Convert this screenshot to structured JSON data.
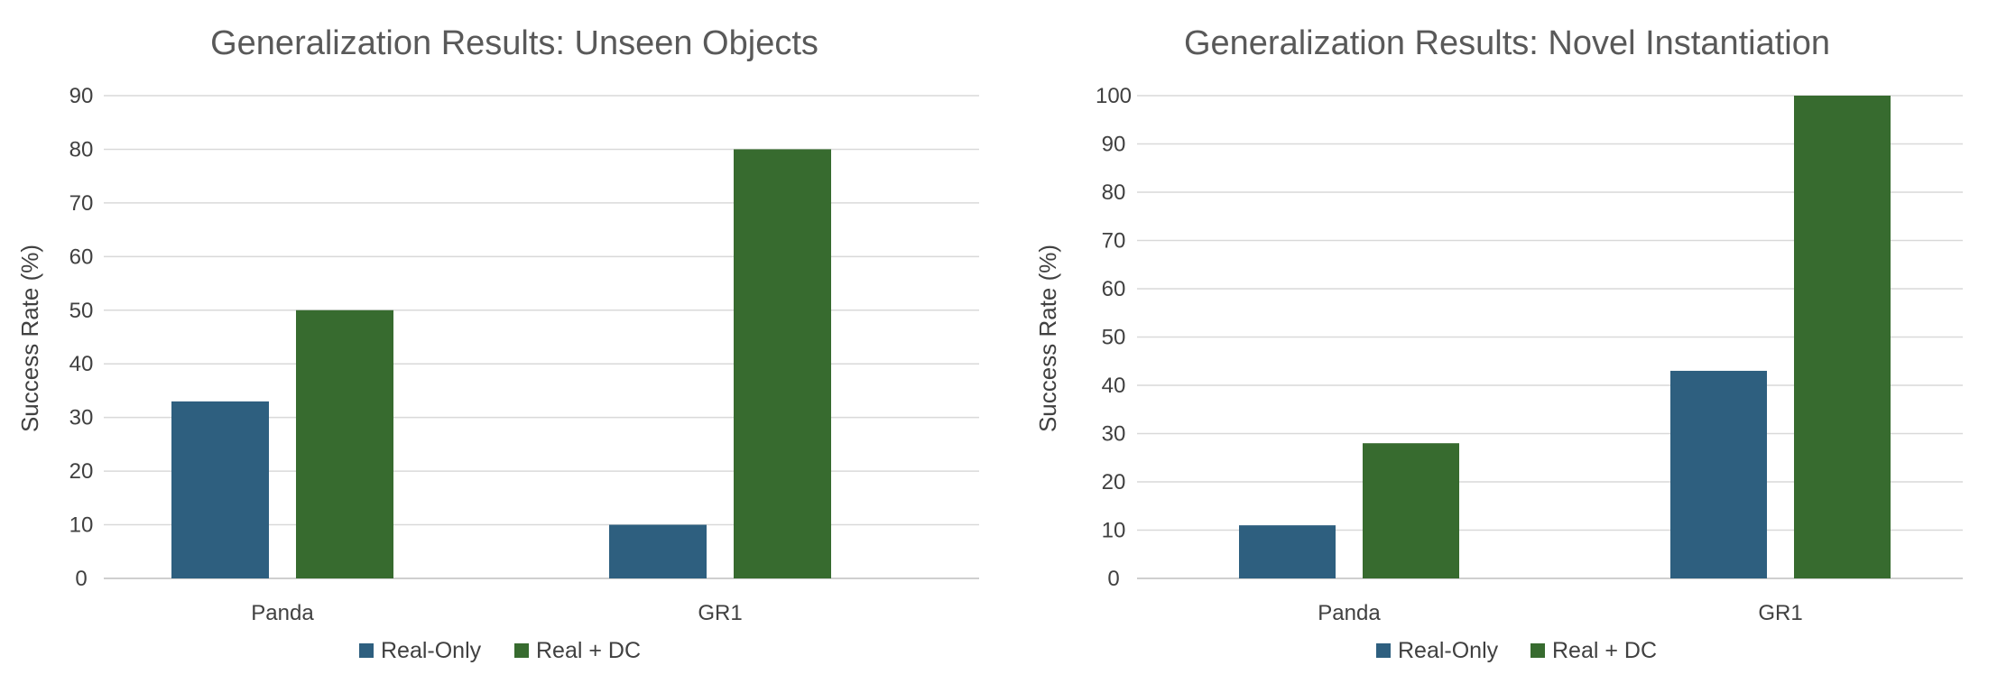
{
  "chart_data": [
    {
      "type": "bar",
      "title": "Generalization Results: Unseen Objects",
      "ylabel": "Success Rate (%)",
      "xlabel": "",
      "categories": [
        "Panda",
        "GR1"
      ],
      "series": [
        {
          "name": "Real-Only",
          "color": "#2e5f7f",
          "values": [
            33,
            10
          ]
        },
        {
          "name": "Real + DC",
          "color": "#376b2f",
          "values": [
            50,
            80
          ]
        }
      ],
      "ylim": [
        0,
        90
      ],
      "ytick_step": 10,
      "grid": true,
      "legend_position": "bottom"
    },
    {
      "type": "bar",
      "title": "Generalization Results: Novel Instantiation",
      "ylabel": "Success Rate (%)",
      "xlabel": "",
      "categories": [
        "Panda",
        "GR1"
      ],
      "series": [
        {
          "name": "Real-Only",
          "color": "#2e5f7f",
          "values": [
            11,
            43
          ]
        },
        {
          "name": "Real + DC",
          "color": "#376b2f",
          "values": [
            28,
            100
          ]
        }
      ],
      "ylim": [
        0,
        100
      ],
      "ytick_step": 10,
      "grid": true,
      "legend_position": "bottom"
    }
  ]
}
